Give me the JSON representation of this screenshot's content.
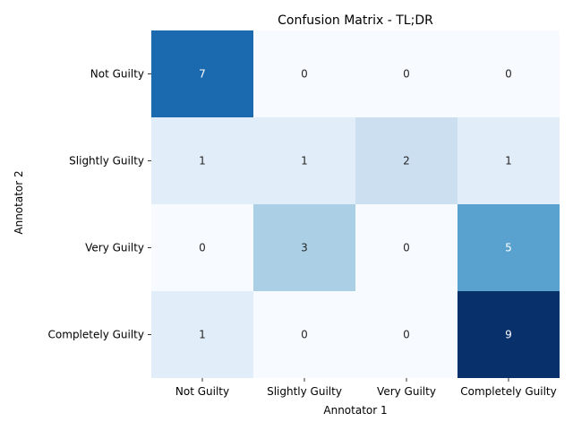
{
  "chart_data": {
    "type": "heatmap",
    "title": "Confusion Matrix - TL;DR",
    "xlabel": "Annotator 1",
    "ylabel": "Annotator 2",
    "x_categories": [
      "Not Guilty",
      "Slightly Guilty",
      "Very Guilty",
      "Completely Guilty"
    ],
    "y_categories": [
      "Not Guilty",
      "Slightly Guilty",
      "Very Guilty",
      "Completely Guilty"
    ],
    "values": [
      [
        7,
        0,
        0,
        0
      ],
      [
        1,
        1,
        2,
        1
      ],
      [
        0,
        3,
        0,
        5
      ],
      [
        1,
        0,
        0,
        9
      ]
    ],
    "value_range": [
      0,
      9
    ],
    "colormap": "Blues",
    "colorbar": false,
    "grid": false
  }
}
